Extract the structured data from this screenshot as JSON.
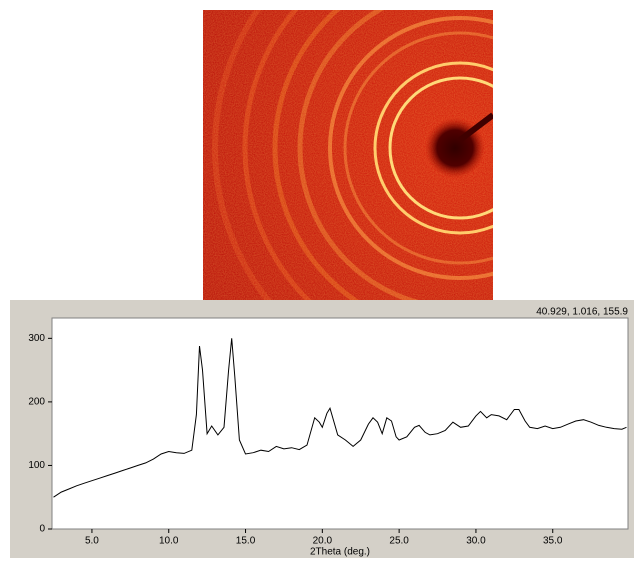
{
  "readout": "40.929, 1.016, 155.9",
  "chart_data": {
    "type": "line",
    "x_label": "2Theta (deg.)",
    "x": [
      2.5,
      3,
      3.5,
      4,
      4.5,
      5,
      5.5,
      6,
      6.5,
      7,
      7.5,
      8,
      8.5,
      9,
      9.5,
      10,
      10.5,
      11,
      11.5,
      11.8,
      12,
      12.2,
      12.5,
      12.8,
      13.2,
      13.6,
      13.9,
      14.1,
      14.3,
      14.6,
      15,
      15.5,
      16,
      16.5,
      17,
      17.5,
      18,
      18.5,
      19,
      19.5,
      19.8,
      20,
      20.3,
      20.5,
      20.8,
      21,
      21.5,
      22,
      22.5,
      23,
      23.3,
      23.6,
      23.9,
      24.2,
      24.5,
      24.8,
      25,
      25.5,
      26,
      26.3,
      26.7,
      27,
      27.5,
      28,
      28.5,
      29,
      29.5,
      30,
      30.3,
      30.7,
      31,
      31.5,
      32,
      32.5,
      32.8,
      33.2,
      33.5,
      34,
      34.5,
      35,
      35.5,
      36,
      36.5,
      37,
      37.5,
      38,
      38.5,
      39,
      39.5,
      39.8
    ],
    "series": [
      {
        "color": "#000000",
        "values": [
          50,
          58,
          63,
          68,
          72,
          76,
          80,
          84,
          88,
          92,
          96,
          100,
          104,
          110,
          118,
          122,
          120,
          119,
          124,
          180,
          288,
          250,
          150,
          162,
          148,
          160,
          250,
          300,
          240,
          140,
          118,
          120,
          124,
          122,
          130,
          126,
          128,
          125,
          132,
          175,
          168,
          160,
          182,
          190,
          165,
          148,
          140,
          130,
          140,
          165,
          175,
          168,
          150,
          175,
          170,
          145,
          140,
          145,
          160,
          163,
          152,
          148,
          150,
          155,
          168,
          160,
          162,
          178,
          185,
          175,
          180,
          178,
          172,
          188,
          188,
          170,
          160,
          158,
          162,
          158,
          160,
          165,
          170,
          172,
          168,
          163,
          160,
          158,
          157,
          160
        ]
      }
    ],
    "xlim": [
      2.4,
      39.9
    ],
    "ylim": [
      0,
      332
    ],
    "xticks": [
      {
        "value": 5,
        "label": "5.0"
      },
      {
        "value": 10,
        "label": "10.0"
      },
      {
        "value": 15,
        "label": "15.0"
      },
      {
        "value": 20,
        "label": "20.0"
      },
      {
        "value": 25,
        "label": "25.0"
      },
      {
        "value": 30,
        "label": "30.0"
      },
      {
        "value": 35,
        "label": "35.0"
      }
    ],
    "yticks": [
      0,
      100,
      200,
      300
    ]
  }
}
